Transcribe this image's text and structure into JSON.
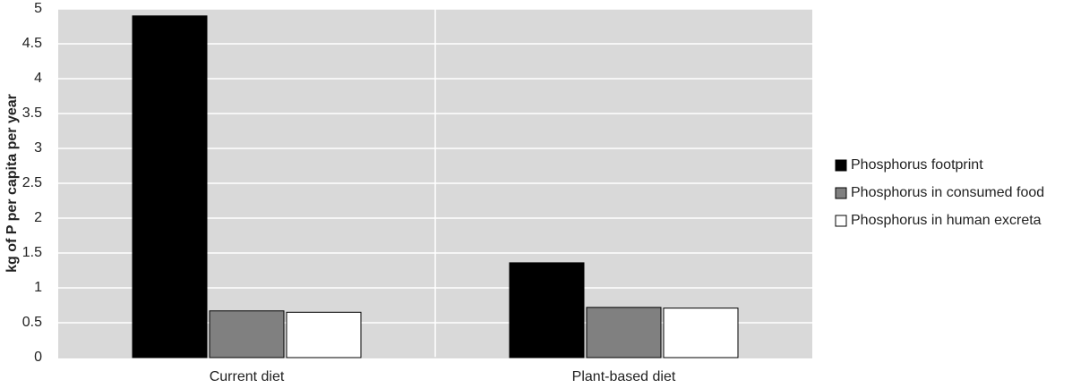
{
  "chart_data": {
    "type": "bar",
    "y_label": "kg of P per capita per year",
    "categories": [
      "Current diet",
      "Plant-based diet"
    ],
    "series": [
      {
        "name": "Phosphorus footprint",
        "color": "#000000",
        "values": [
          4.9,
          1.36
        ]
      },
      {
        "name": "Phosphorus in consumed food",
        "color": "#808080",
        "values": [
          0.67,
          0.72
        ]
      },
      {
        "name": "Phosphorus in human excreta",
        "color": "#ffffff",
        "values": [
          0.65,
          0.71
        ]
      }
    ],
    "ylim": [
      0,
      5
    ],
    "yticks": [
      0,
      0.5,
      1,
      1.5,
      2,
      2.5,
      3,
      3.5,
      4,
      4.5,
      5
    ],
    "grid": true,
    "plot_background": "#d9d9d9",
    "legend": "right"
  }
}
